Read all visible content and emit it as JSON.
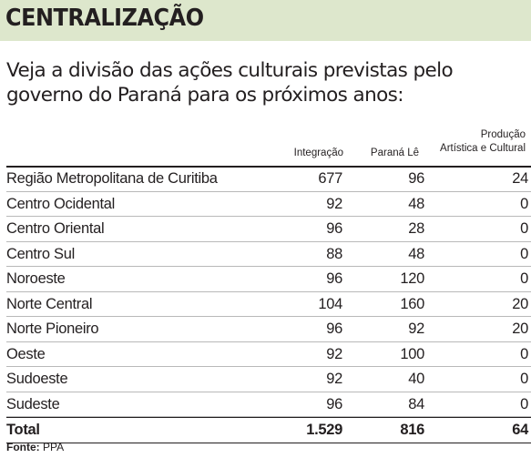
{
  "header": {
    "title": "CENTRALIZAÇÃO"
  },
  "intro": "Veja a divisão das ações culturais previstas pelo governo do Paraná para os próximos anos:",
  "columns": {
    "c1": "Integração",
    "c2": "Paraná Lê",
    "c3_line1": "Produção",
    "c3_line2": "Artística e Cultural"
  },
  "rows": [
    {
      "name": "Região Metropolitana de Curitiba",
      "v1": "677",
      "v2": "96",
      "v3": "24"
    },
    {
      "name": "Centro Ocidental",
      "v1": "92",
      "v2": "48",
      "v3": "0"
    },
    {
      "name": "Centro Oriental",
      "v1": "96",
      "v2": "28",
      "v3": "0"
    },
    {
      "name": "Centro Sul",
      "v1": "88",
      "v2": "48",
      "v3": "0"
    },
    {
      "name": "Noroeste",
      "v1": "96",
      "v2": "120",
      "v3": "0"
    },
    {
      "name": "Norte Central",
      "v1": "104",
      "v2": "160",
      "v3": "20"
    },
    {
      "name": "Norte Pioneiro",
      "v1": "96",
      "v2": "92",
      "v3": "20"
    },
    {
      "name": "Oeste",
      "v1": "92",
      "v2": "100",
      "v3": "0"
    },
    {
      "name": "Sudoeste",
      "v1": "92",
      "v2": "40",
      "v3": "0"
    },
    {
      "name": "Sudeste",
      "v1": "96",
      "v2": "84",
      "v3": "0"
    }
  ],
  "total": {
    "name": "Total",
    "v1": "1.529",
    "v2": "816",
    "v3": "64"
  },
  "source": {
    "label": "Fonte:",
    "value": "PPA"
  }
}
